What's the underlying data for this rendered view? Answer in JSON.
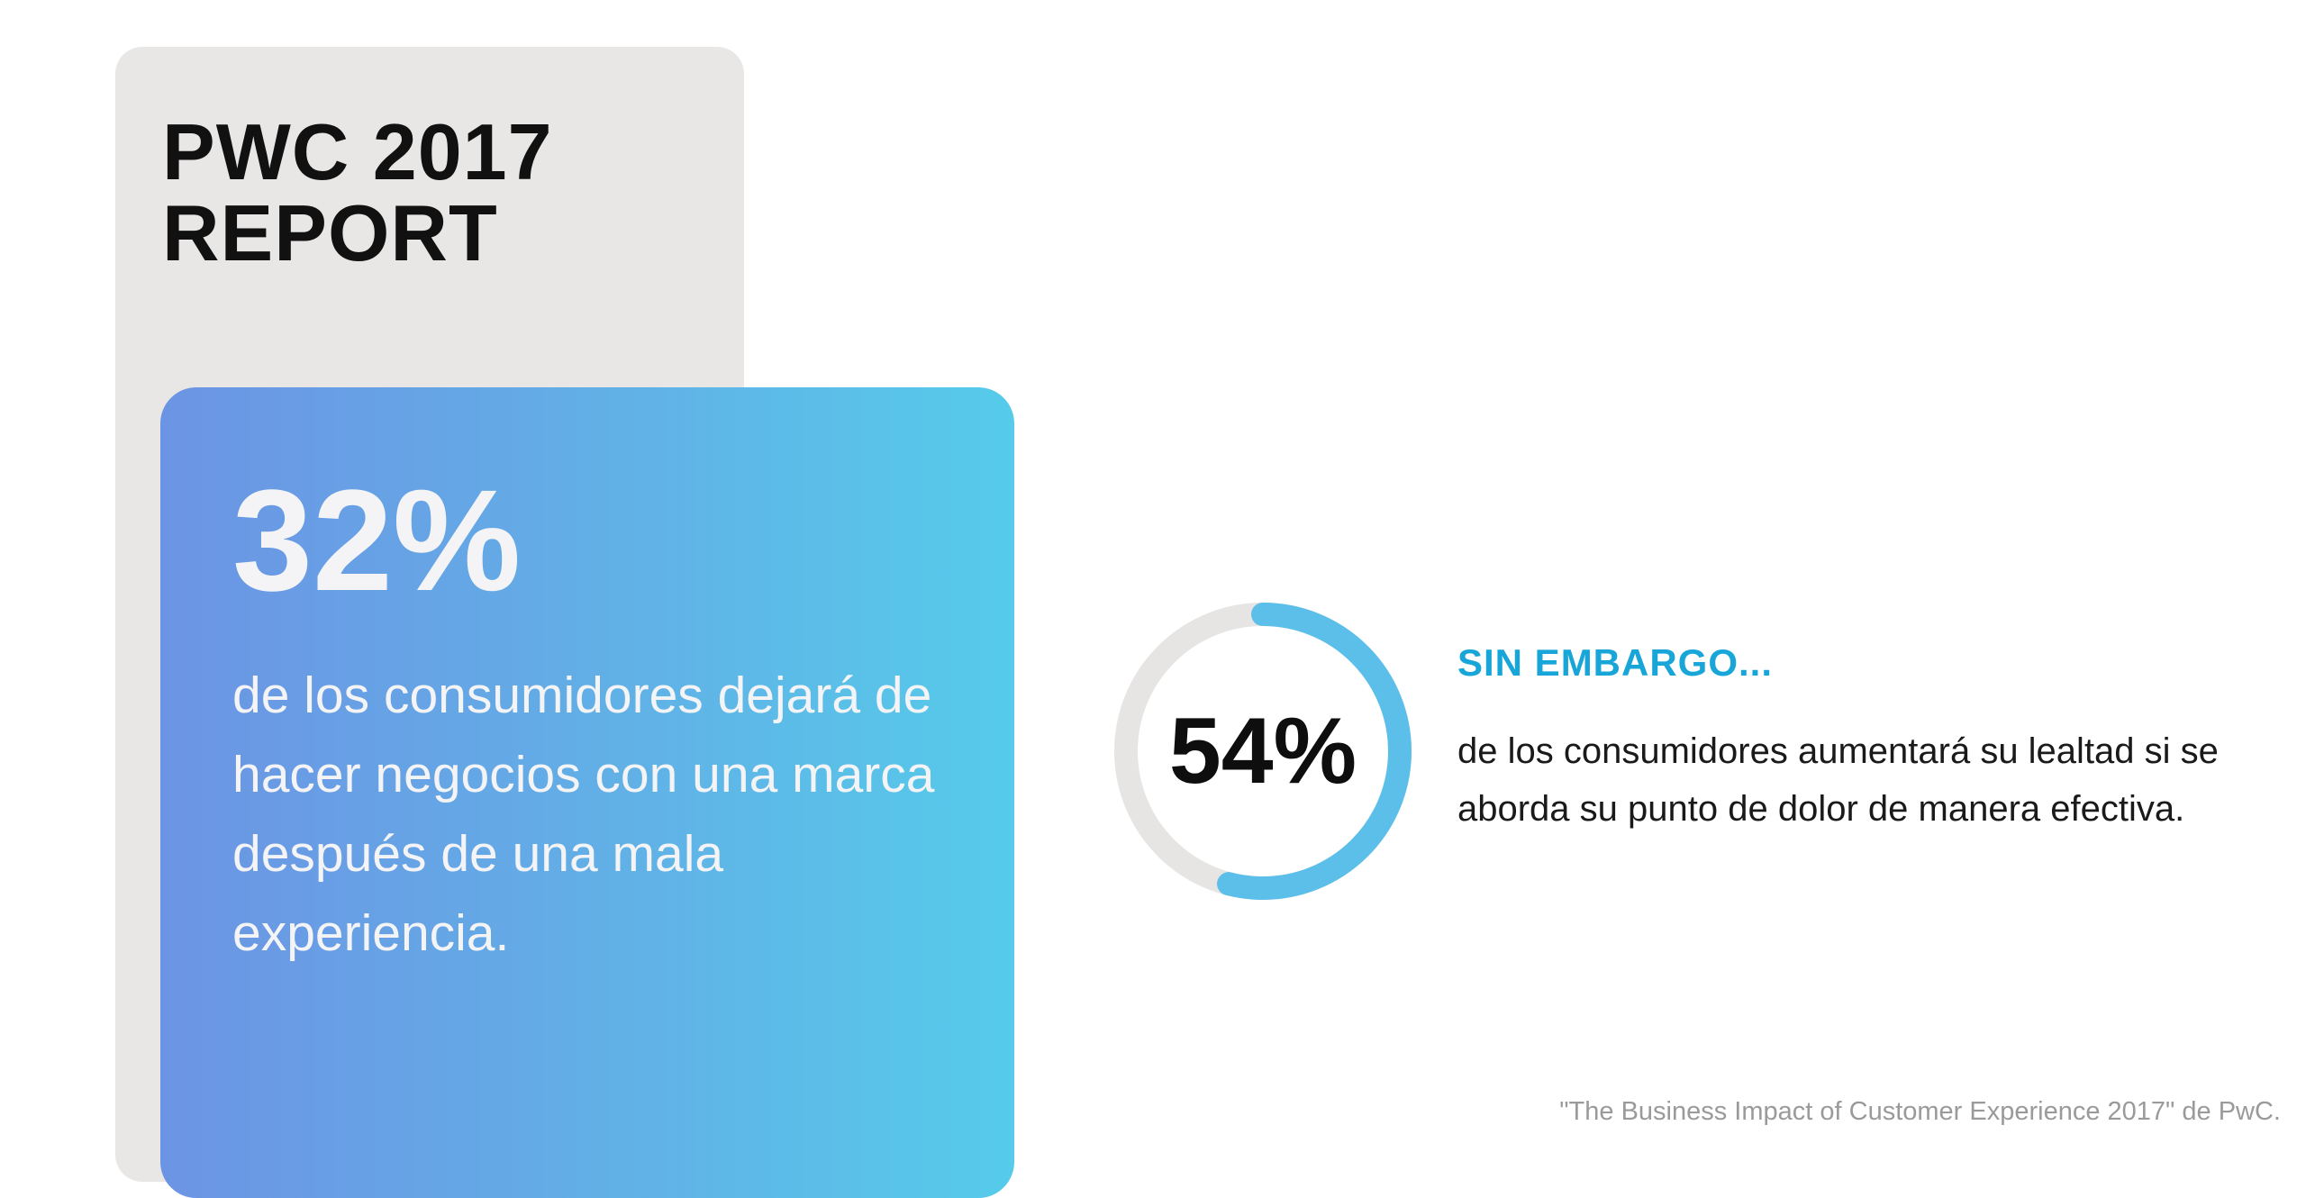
{
  "title": {
    "line1": "PWC 2017",
    "line2": "REPORT"
  },
  "stat_card": {
    "value": "32%",
    "description": "de los consumidores dejará de hacer negocios con una marca después de una mala experiencia."
  },
  "donut": {
    "label": "54%",
    "fraction": 0.54,
    "color_fill": "#5bbfea",
    "color_track": "#e6e5e4"
  },
  "however": {
    "heading": "SIN EMBARGO...",
    "description": "de los consumidores aumentará su lealtad si se aborda su punto de dolor de manera efectiva."
  },
  "source": "\"The Business Impact of Customer Experience 2017\" de PwC.",
  "colors": {
    "accent": "#18a6d9",
    "card_gradient_start": "#6c94e4",
    "card_gradient_end": "#56cbea",
    "panel_gray": "#e8e7e6"
  }
}
